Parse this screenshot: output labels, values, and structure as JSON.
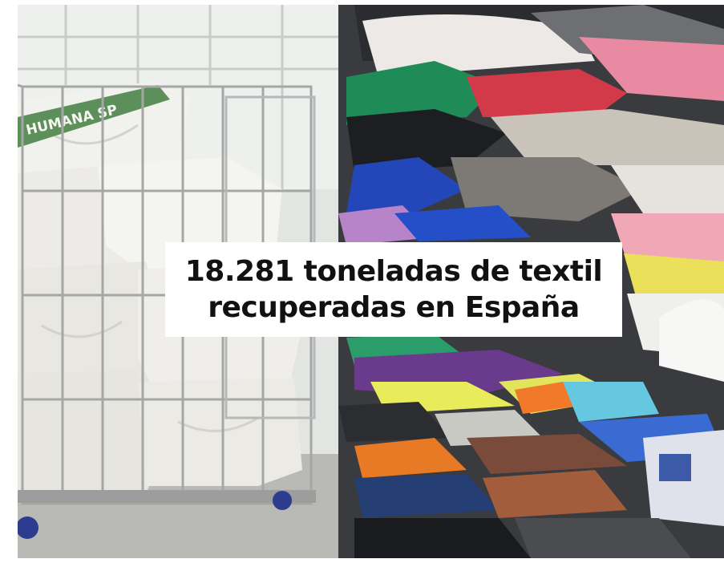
{
  "photo": {
    "bag_print": "HUMANA SP",
    "caption": {
      "line1": "18.281 toneladas de textil",
      "line2": "recuperadas en España"
    }
  }
}
